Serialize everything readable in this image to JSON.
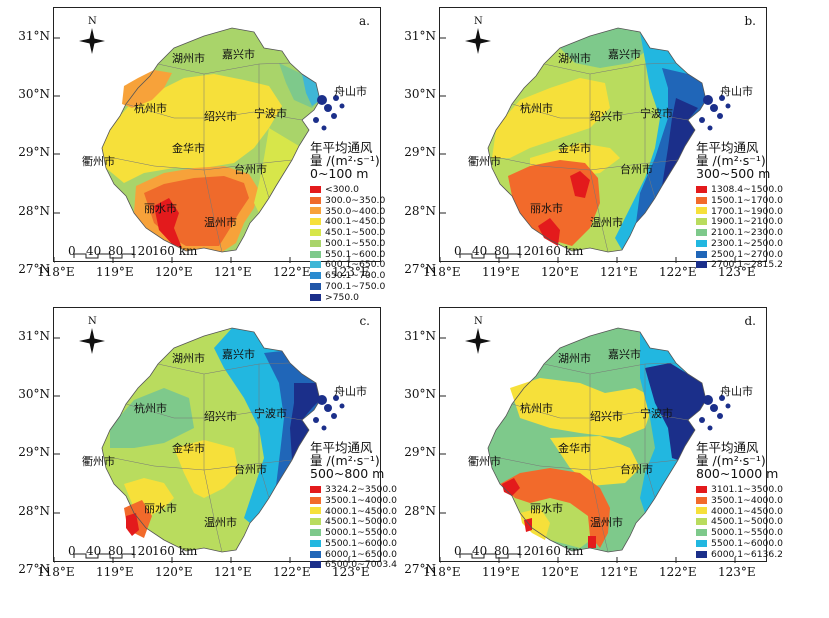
{
  "lat_labels": [
    "31°N",
    "30°N",
    "29°N",
    "28°N",
    "27°N"
  ],
  "lon_labels": [
    "118°E",
    "119°E",
    "120°E",
    "121°E",
    "122°E",
    "123°E"
  ],
  "north": "N",
  "scale": {
    "ticks": [
      "0",
      "40",
      "80",
      "120",
      "160 km"
    ]
  },
  "cities": [
    "湖州市",
    "嘉兴市",
    "舟山市",
    "杭州市",
    "绍兴市",
    "宁波市",
    "衢州市",
    "金华市",
    "台州市",
    "丽水市",
    "温州市"
  ],
  "legend_title": {
    "line1": "年平均通风",
    "line2": "量 /(m²·s⁻¹)"
  },
  "panels": [
    {
      "label": "a.",
      "height_range": "0~100 m",
      "legend": [
        "<300.0",
        "300.0~350.0",
        "350.0~400.0",
        "400.1~450.0",
        "450.1~500.0",
        "500.1~550.0",
        "550.1~600.0",
        "600.1~650.0",
        "650.1~700.0",
        "700.1~750.0",
        ">750.0"
      ],
      "colors": [
        "#e31a1c",
        "#ef6a2b",
        "#f7a23a",
        "#f6e03a",
        "#d7e64a",
        "#a9d46a",
        "#7ec98b",
        "#3fb6d6",
        "#2b8bd0",
        "#2056a8",
        "#1b2f8a"
      ]
    },
    {
      "label": "b.",
      "height_range": "300~500 m",
      "legend": [
        "1308.4~1500.0",
        "1500.1~1700.0",
        "1700.1~1900.0",
        "1900.1~2100.0",
        "2100.1~2300.0",
        "2300.1~2500.0",
        "2500.1~2700.0",
        "2700.1~2815.2"
      ],
      "colors": [
        "#e31a1c",
        "#f26a2b",
        "#f6e03a",
        "#b9dc5e",
        "#7ec98b",
        "#22b7e0",
        "#2066b8",
        "#1b2f8a"
      ]
    },
    {
      "label": "c.",
      "height_range": "500~800 m",
      "legend": [
        "3324.2~3500.0",
        "3500.1~4000.0",
        "4000.1~4500.0",
        "4500.1~5000.0",
        "5000.1~5500.0",
        "5500.1~6000.0",
        "6000.1~6500.0",
        "6500.0~7003.4"
      ],
      "colors": [
        "#e31a1c",
        "#f26a2b",
        "#f6e03a",
        "#b9dc5e",
        "#7ec98b",
        "#22b7e0",
        "#2066b8",
        "#1b2f8a"
      ]
    },
    {
      "label": "d.",
      "height_range": "800~1000 m",
      "legend": [
        "3101.1~3500.0",
        "3500.1~4000.0",
        "4000.1~4500.0",
        "4500.1~5000.0",
        "5000.1~5500.0",
        "5500.1~6000.0",
        "6000.1~6136.2"
      ],
      "colors": [
        "#e31a1c",
        "#f26a2b",
        "#f6e03a",
        "#b9dc5e",
        "#7ec98b",
        "#22b7e0",
        "#1b2f8a"
      ]
    }
  ]
}
